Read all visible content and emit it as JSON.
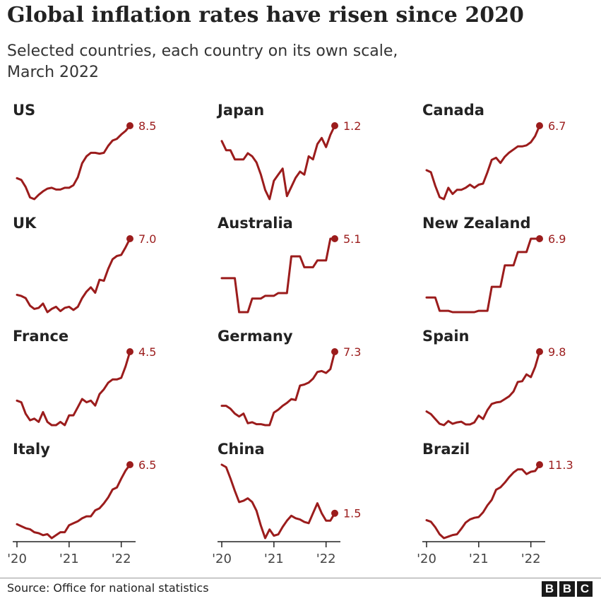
{
  "title": "Global inflation rates have risen since 2020",
  "subtitle_lines": [
    "Selected countries, each country on its own scale,",
    "March 2022"
  ],
  "source": "Source: Office for national statistics",
  "logo": [
    "B",
    "B",
    "C"
  ],
  "colors": {
    "line": "#9b1c1c",
    "axis": "#222222",
    "text": "#222222"
  },
  "chart_data": {
    "type": "line",
    "x_axis_ticks": [
      "'20",
      "'21",
      "'22"
    ],
    "panels": [
      {
        "country": "US",
        "last_value": "8.5",
        "values": [
          2.5,
          2.3,
          1.5,
          0.3,
          0.1,
          0.6,
          1.0,
          1.3,
          1.4,
          1.2,
          1.2,
          1.4,
          1.4,
          1.7,
          2.6,
          4.2,
          5.0,
          5.4,
          5.4,
          5.3,
          5.4,
          6.2,
          6.8,
          7.0,
          7.5,
          7.9,
          8.5
        ]
      },
      {
        "country": "Japan",
        "last_value": "1.2",
        "values": [
          0.7,
          0.4,
          0.4,
          0.1,
          0.1,
          0.1,
          0.3,
          0.2,
          0.0,
          -0.4,
          -0.9,
          -1.2,
          -0.6,
          -0.4,
          -0.2,
          -1.1,
          -0.8,
          -0.5,
          -0.3,
          -0.4,
          0.2,
          0.1,
          0.6,
          0.8,
          0.5,
          0.9,
          1.2
        ]
      },
      {
        "country": "Canada",
        "last_value": "6.7",
        "values": [
          2.4,
          2.2,
          0.9,
          -0.2,
          -0.4,
          0.7,
          0.1,
          0.5,
          0.5,
          0.7,
          1.0,
          0.7,
          1.0,
          1.1,
          2.2,
          3.4,
          3.6,
          3.1,
          3.7,
          4.1,
          4.4,
          4.7,
          4.7,
          4.8,
          5.1,
          5.7,
          6.7
        ]
      },
      {
        "country": "UK",
        "last_value": "7.0",
        "values": [
          1.8,
          1.7,
          1.5,
          0.8,
          0.5,
          0.6,
          1.0,
          0.2,
          0.5,
          0.7,
          0.3,
          0.6,
          0.7,
          0.4,
          0.7,
          1.5,
          2.1,
          2.5,
          2.0,
          3.2,
          3.1,
          4.2,
          5.1,
          5.4,
          5.5,
          6.2,
          7.0
        ]
      },
      {
        "country": "Australia",
        "last_value": "5.1",
        "values": [
          2.2,
          2.2,
          2.2,
          2.2,
          -0.3,
          -0.3,
          -0.3,
          0.7,
          0.7,
          0.7,
          0.9,
          0.9,
          0.9,
          1.1,
          1.1,
          1.1,
          3.8,
          3.8,
          3.8,
          3.0,
          3.0,
          3.0,
          3.5,
          3.5,
          3.5,
          5.1,
          5.1
        ]
      },
      {
        "country": "New Zealand",
        "last_value": "6.9",
        "values": [
          2.5,
          2.5,
          2.5,
          1.5,
          1.5,
          1.5,
          1.4,
          1.4,
          1.4,
          1.4,
          1.4,
          1.4,
          1.5,
          1.5,
          1.5,
          3.3,
          3.3,
          3.3,
          4.9,
          4.9,
          4.9,
          5.9,
          5.9,
          5.9,
          6.9,
          6.9,
          6.9
        ]
      },
      {
        "country": "France",
        "last_value": "4.5",
        "values": [
          1.5,
          1.4,
          0.7,
          0.3,
          0.4,
          0.2,
          0.8,
          0.2,
          0.0,
          0.0,
          0.2,
          0.0,
          0.6,
          0.6,
          1.1,
          1.6,
          1.4,
          1.5,
          1.2,
          1.9,
          2.2,
          2.6,
          2.8,
          2.8,
          2.9,
          3.6,
          4.5
        ]
      },
      {
        "country": "Germany",
        "last_value": "7.3",
        "values": [
          1.7,
          1.7,
          1.4,
          0.9,
          0.6,
          0.9,
          -0.1,
          0.0,
          -0.2,
          -0.2,
          -0.3,
          -0.3,
          1.0,
          1.3,
          1.7,
          2.0,
          2.4,
          2.3,
          3.8,
          3.9,
          4.1,
          4.5,
          5.2,
          5.3,
          5.1,
          5.5,
          7.3
        ]
      },
      {
        "country": "Spain",
        "last_value": "9.8",
        "values": [
          1.1,
          0.7,
          0.0,
          -0.7,
          -0.9,
          -0.3,
          -0.7,
          -0.5,
          -0.4,
          -0.8,
          -0.8,
          -0.5,
          0.5,
          0.0,
          1.3,
          2.2,
          2.4,
          2.5,
          2.9,
          3.3,
          4.0,
          5.4,
          5.5,
          6.5,
          6.1,
          7.6,
          9.8
        ]
      },
      {
        "country": "Italy",
        "last_value": "6.5",
        "values": [
          0.5,
          0.3,
          0.1,
          0.0,
          -0.3,
          -0.4,
          -0.6,
          -0.5,
          -0.9,
          -0.6,
          -0.3,
          -0.3,
          0.4,
          0.6,
          0.8,
          1.1,
          1.3,
          1.3,
          1.9,
          2.1,
          2.6,
          3.2,
          4.0,
          4.2,
          5.1,
          5.9,
          6.5
        ]
      },
      {
        "country": "China",
        "last_value": "1.5",
        "values": [
          5.4,
          5.2,
          4.3,
          3.3,
          2.4,
          2.5,
          2.7,
          2.4,
          1.7,
          0.5,
          -0.5,
          0.2,
          -0.3,
          -0.2,
          0.4,
          0.9,
          1.3,
          1.1,
          1.0,
          0.8,
          0.7,
          1.5,
          2.3,
          1.5,
          0.9,
          0.9,
          1.5
        ]
      },
      {
        "country": "Brazil",
        "last_value": "11.3",
        "values": [
          4.2,
          4.0,
          3.3,
          2.4,
          1.9,
          2.1,
          2.3,
          2.4,
          3.1,
          3.9,
          4.3,
          4.5,
          4.6,
          5.2,
          6.1,
          6.8,
          8.1,
          8.4,
          9.0,
          9.7,
          10.3,
          10.7,
          10.7,
          10.1,
          10.4,
          10.5,
          11.3
        ]
      }
    ]
  }
}
